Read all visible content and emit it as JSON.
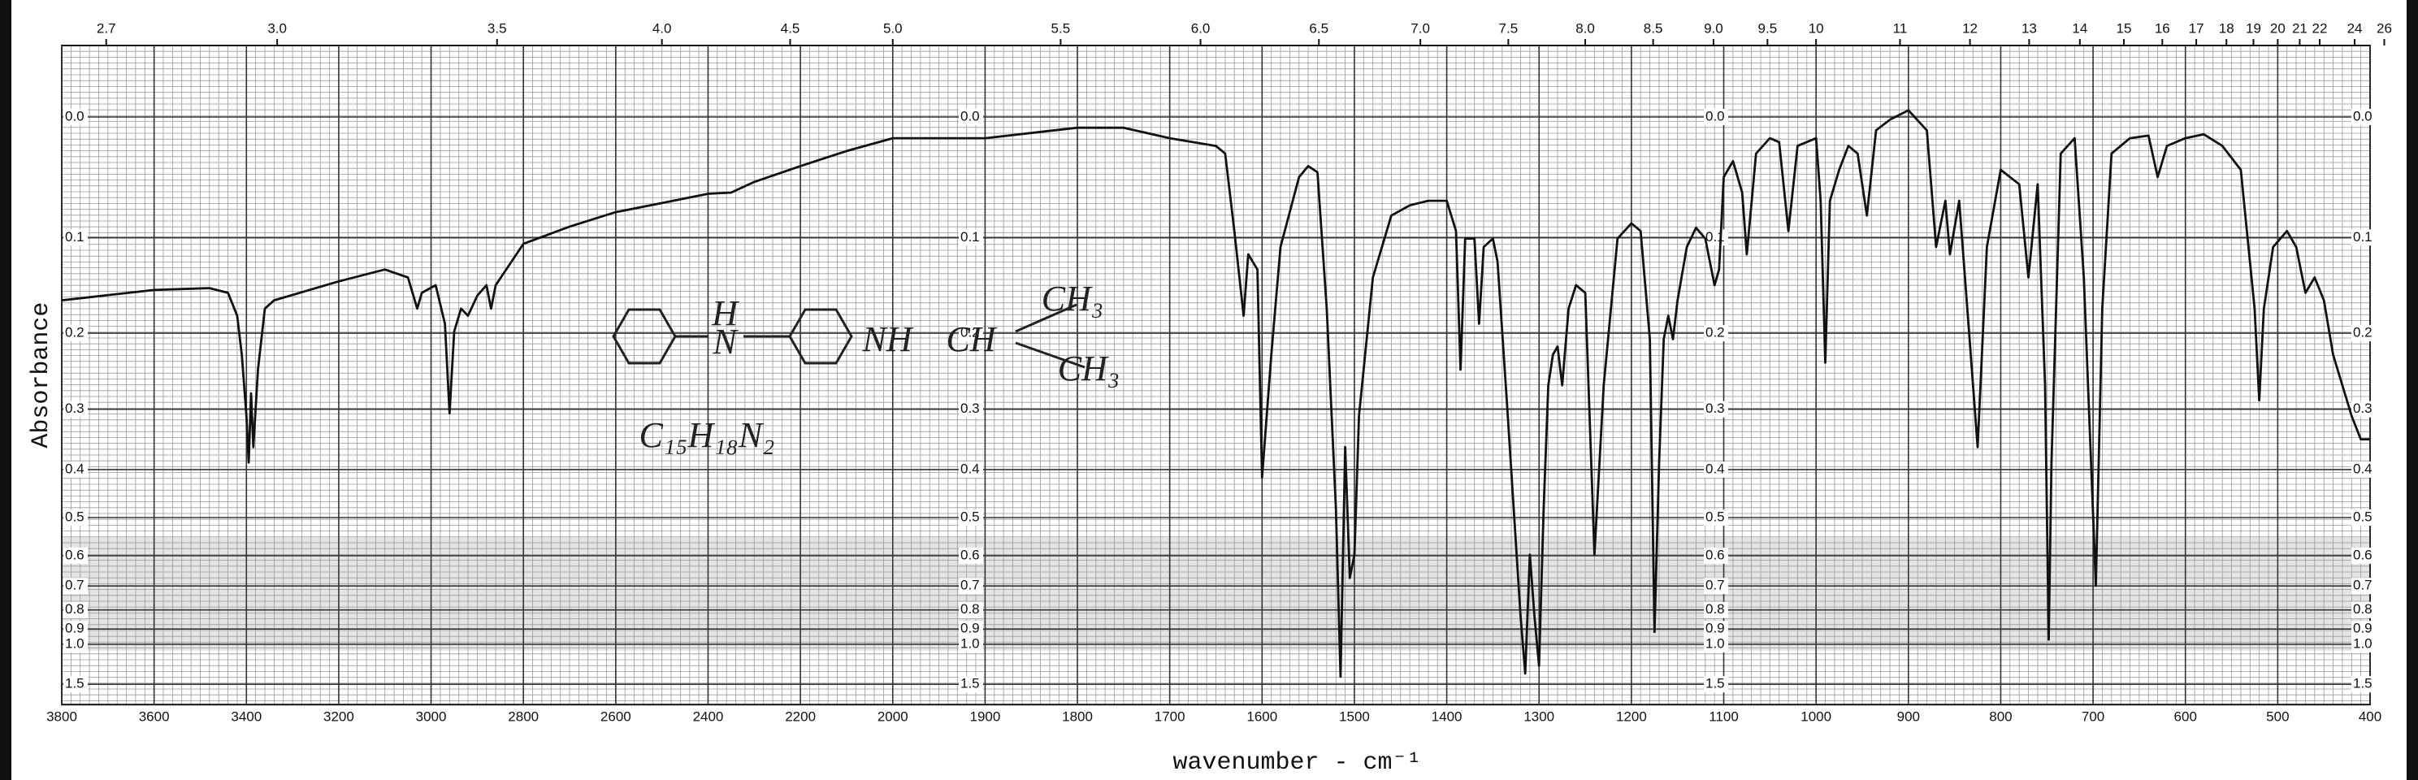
{
  "chart_data": {
    "type": "line",
    "ylabel": "Absorbance",
    "xlabel": "wavenumber - cm⁻¹",
    "xlim": [
      3800,
      400
    ],
    "x_scale_change": 2000,
    "xticks": [
      3800,
      3600,
      3400,
      3200,
      3000,
      2800,
      2600,
      2400,
      2200,
      2000,
      1900,
      1800,
      1700,
      1600,
      1500,
      1400,
      1300,
      1200,
      1100,
      1000,
      900,
      800,
      700,
      600,
      500,
      400
    ],
    "x2ticks": [
      2.7,
      {
        "value": 3,
        "label": "3.0"
      },
      3.5,
      {
        "value": 4,
        "label": "4.0"
      },
      4.5,
      {
        "value": 5,
        "label": "5.0"
      },
      5.5,
      {
        "value": 6,
        "label": "6.0"
      },
      6.5,
      {
        "value": 7,
        "label": "7.0"
      },
      7.5,
      {
        "value": 8,
        "label": "8.0"
      },
      8.5,
      {
        "value": 9,
        "label": "9.0"
      },
      9.5,
      10,
      11,
      12,
      13,
      14,
      15,
      16,
      17,
      18,
      19,
      20,
      21,
      22,
      24,
      26
    ],
    "yscale": "transmittance",
    "ylim": [
      -0.05,
      1.5
    ],
    "yticks": [
      {
        "value": 0,
        "label": "0.0"
      },
      0.1,
      0.2,
      0.3,
      0.4,
      0.5,
      0.6,
      0.7,
      0.8,
      0.9,
      {
        "value": 1,
        "label": "1.0"
      },
      1.5
    ],
    "grid": true,
    "color": "#111111",
    "annotations": [
      "H",
      "N",
      "NH",
      "CH",
      "CH₃",
      "CH₃",
      "C₁₅H₁₈N₂"
    ],
    "x": [
      3800,
      3600,
      3480,
      3440,
      3420,
      3410,
      3400,
      3395,
      3390,
      3385,
      3375,
      3360,
      3340,
      3200,
      3100,
      3050,
      3030,
      3020,
      2990,
      2970,
      2960,
      2950,
      2935,
      2920,
      2900,
      2880,
      2870,
      2860,
      2800,
      2700,
      2600,
      2500,
      2400,
      2350,
      2300,
      2200,
      2100,
      2000,
      1900,
      1800,
      1750,
      1700,
      1650,
      1640,
      1630,
      1620,
      1615,
      1605,
      1600,
      1590,
      1580,
      1560,
      1550,
      1540,
      1530,
      1520,
      1515,
      1510,
      1505,
      1500,
      1495,
      1480,
      1460,
      1440,
      1420,
      1400,
      1390,
      1385,
      1380,
      1370,
      1365,
      1360,
      1350,
      1345,
      1335,
      1320,
      1315,
      1310,
      1305,
      1300,
      1295,
      1290,
      1285,
      1280,
      1275,
      1268,
      1260,
      1250,
      1240,
      1230,
      1215,
      1200,
      1190,
      1180,
      1175,
      1170,
      1165,
      1160,
      1155,
      1150,
      1140,
      1130,
      1120,
      1110,
      1105,
      1100,
      1090,
      1080,
      1075,
      1065,
      1050,
      1040,
      1030,
      1020,
      1000,
      995,
      990,
      985,
      975,
      965,
      955,
      945,
      935,
      920,
      900,
      880,
      870,
      860,
      855,
      845,
      835,
      825,
      815,
      800,
      780,
      770,
      760,
      752,
      748,
      745,
      735,
      720,
      710,
      697,
      690,
      680,
      660,
      640,
      630,
      620,
      600,
      580,
      560,
      540,
      525,
      520,
      515,
      505,
      490,
      480,
      470,
      460,
      450,
      440,
      420,
      410,
      400
    ],
    "values": [
      0.163,
      0.152,
      0.15,
      0.155,
      0.18,
      0.226,
      0.31,
      0.387,
      0.277,
      0.36,
      0.245,
      0.172,
      0.163,
      0.143,
      0.131,
      0.139,
      0.172,
      0.155,
      0.147,
      0.189,
      0.306,
      0.198,
      0.172,
      0.18,
      0.158,
      0.147,
      0.172,
      0.147,
      0.106,
      0.09,
      0.077,
      0.069,
      0.061,
      0.06,
      0.051,
      0.038,
      0.026,
      0.016,
      0.016,
      0.008,
      0.008,
      0.016,
      0.022,
      0.028,
      0.094,
      0.18,
      0.116,
      0.131,
      0.415,
      0.226,
      0.109,
      0.047,
      0.038,
      0.043,
      0.172,
      0.479,
      1.35,
      0.36,
      0.671,
      0.597,
      0.31,
      0.139,
      0.08,
      0.071,
      0.067,
      0.067,
      0.094,
      0.245,
      0.101,
      0.101,
      0.189,
      0.109,
      0.101,
      0.123,
      0.287,
      0.832,
      1.3,
      0.597,
      0.832,
      1.2,
      0.479,
      0.266,
      0.226,
      0.216,
      0.266,
      0.172,
      0.147,
      0.155,
      0.597,
      0.266,
      0.101,
      0.087,
      0.094,
      0.207,
      0.917,
      0.387,
      0.207,
      0.18,
      0.207,
      0.163,
      0.109,
      0.091,
      0.101,
      0.147,
      0.131,
      0.047,
      0.034,
      0.06,
      0.116,
      0.028,
      0.016,
      0.019,
      0.094,
      0.022,
      0.016,
      0.067,
      0.236,
      0.067,
      0.041,
      0.022,
      0.028,
      0.08,
      0.01,
      0.002,
      -0.005,
      0.01,
      0.109,
      0.067,
      0.116,
      0.067,
      0.189,
      0.36,
      0.109,
      0.041,
      0.053,
      0.139,
      0.053,
      0.266,
      0.967,
      0.387,
      0.028,
      0.016,
      0.139,
      0.699,
      0.172,
      0.028,
      0.016,
      0.014,
      0.047,
      0.022,
      0.016,
      0.013,
      0.022,
      0.041,
      0.172,
      0.287,
      0.172,
      0.109,
      0.094,
      0.109,
      0.155,
      0.139,
      0.163,
      0.226,
      0.31,
      0.347,
      0.347
    ]
  }
}
